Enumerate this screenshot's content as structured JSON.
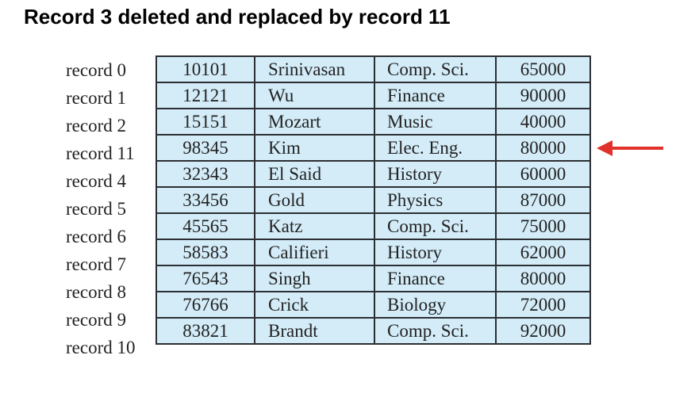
{
  "title": "Record 3 deleted and replaced by record 11",
  "colors": {
    "cell_fill": "#d3ecf8",
    "border": "#2b2f33",
    "arrow": "#e0322b"
  },
  "arrow_points_to_row": 3,
  "records": [
    {
      "label": "record 0",
      "id": "10101",
      "name": "Srinivasan",
      "dept": "Comp. Sci.",
      "salary": "65000"
    },
    {
      "label": "record 1",
      "id": "12121",
      "name": "Wu",
      "dept": "Finance",
      "salary": "90000"
    },
    {
      "label": "record 2",
      "id": "15151",
      "name": "Mozart",
      "dept": "Music",
      "salary": "40000"
    },
    {
      "label": "record 11",
      "id": "98345",
      "name": "Kim",
      "dept": "Elec. Eng.",
      "salary": "80000"
    },
    {
      "label": "record 4",
      "id": "32343",
      "name": "El Said",
      "dept": "History",
      "salary": "60000"
    },
    {
      "label": "record 5",
      "id": "33456",
      "name": "Gold",
      "dept": "Physics",
      "salary": "87000"
    },
    {
      "label": "record 6",
      "id": "45565",
      "name": "Katz",
      "dept": "Comp. Sci.",
      "salary": "75000"
    },
    {
      "label": "record 7",
      "id": "58583",
      "name": "Califieri",
      "dept": "History",
      "salary": "62000"
    },
    {
      "label": "record 8",
      "id": "76543",
      "name": "Singh",
      "dept": "Finance",
      "salary": "80000"
    },
    {
      "label": "record 9",
      "id": "76766",
      "name": "Crick",
      "dept": "Biology",
      "salary": "72000"
    },
    {
      "label": "record 10",
      "id": "83821",
      "name": "Brandt",
      "dept": "Comp. Sci.",
      "salary": "92000"
    }
  ]
}
